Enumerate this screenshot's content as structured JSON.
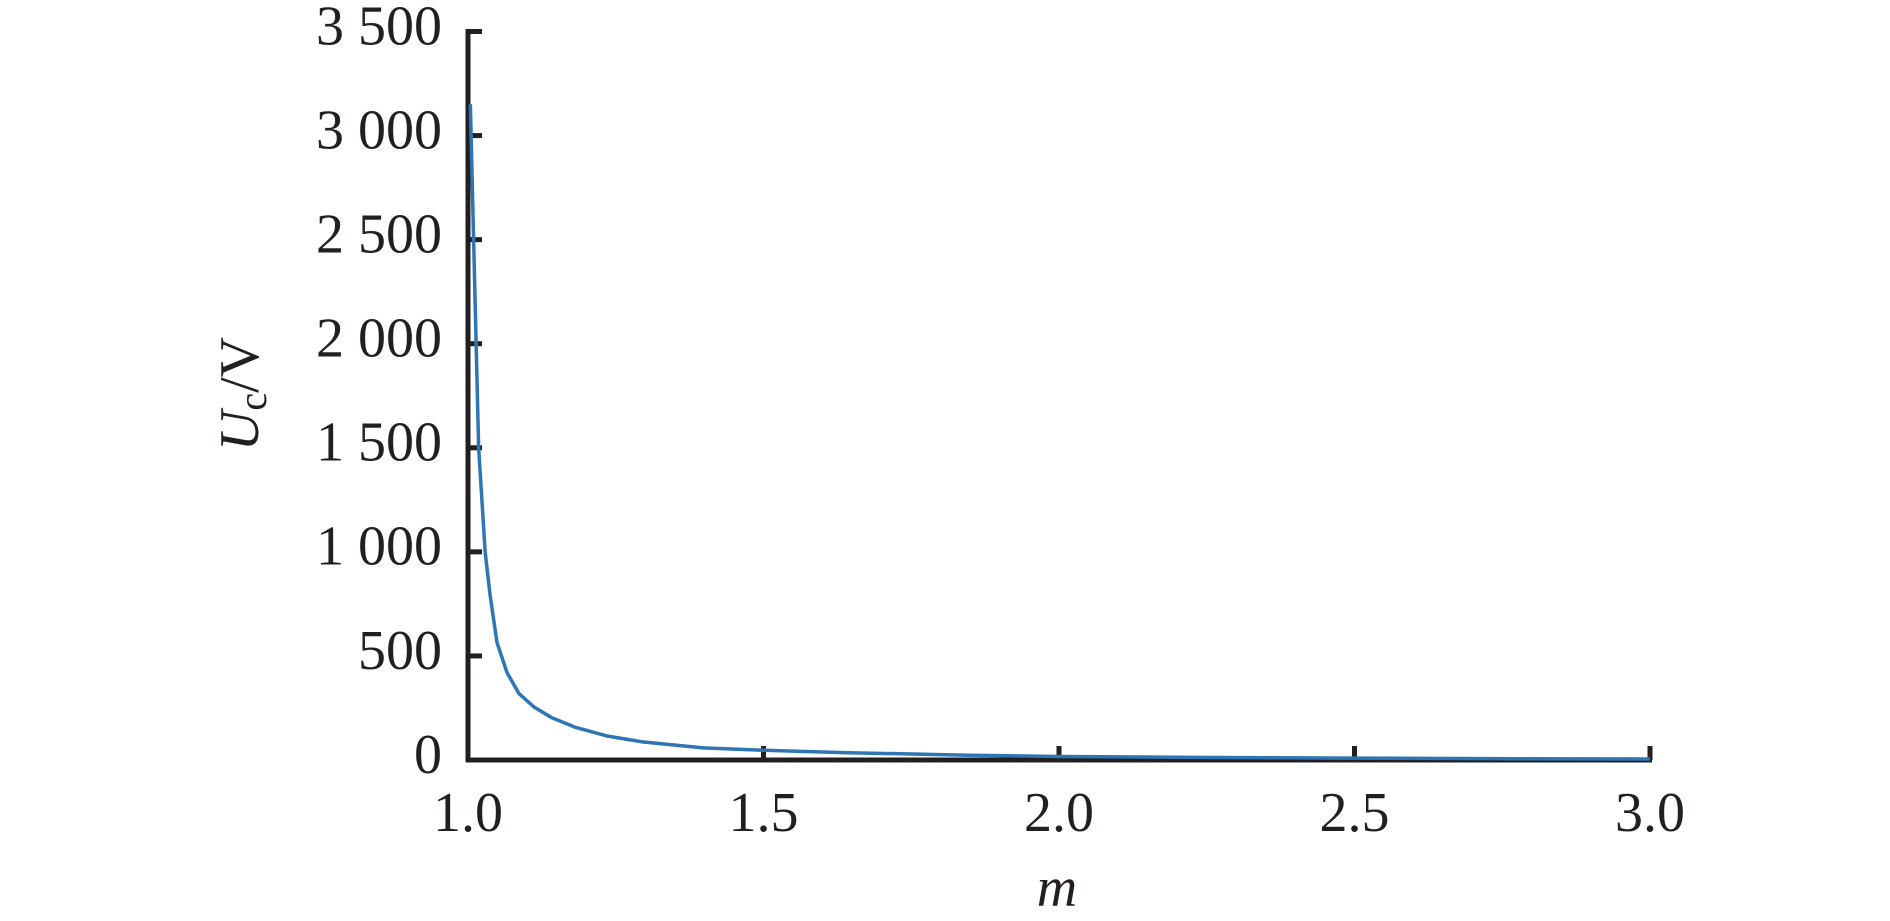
{
  "chart_data": {
    "type": "line",
    "xlabel": "m",
    "ylabel": {
      "symbol": "U",
      "subscript": "c",
      "unit": "/V"
    },
    "x": [
      1.004,
      1.018,
      1.029,
      1.037,
      1.049,
      1.066,
      1.086,
      1.111,
      1.141,
      1.182,
      1.234,
      1.295,
      1.398,
      1.5,
      1.643,
      1.848,
      2.0,
      2.258,
      2.5,
      2.77,
      3.0
    ],
    "series": [
      {
        "color": "#2e75b6",
        "values": [
          3150,
          1500,
          1000,
          800,
          565,
          420,
          320,
          256,
          204,
          157,
          116,
          87,
          58,
          47,
          35,
          23,
          17,
          12,
          9,
          6,
          5
        ]
      }
    ],
    "xlim": [
      1.0,
      3.0
    ],
    "xticks": [
      {
        "value": 1,
        "label": "1.0"
      },
      1.5,
      {
        "value": 2,
        "label": "2.0"
      },
      2.5,
      {
        "value": 3,
        "label": "3.0"
      }
    ],
    "ylim": [
      0,
      3500
    ],
    "yticks": [
      0,
      500,
      {
        "value": 1000,
        "label": "1 000"
      },
      {
        "value": 1500,
        "label": "1 500"
      },
      {
        "value": 2000,
        "label": "2 000"
      },
      {
        "value": 2500,
        "label": "2 500"
      },
      {
        "value": 3000,
        "label": "3 000"
      },
      {
        "value": 3500,
        "label": "3 500"
      }
    ],
    "grid": false
  }
}
